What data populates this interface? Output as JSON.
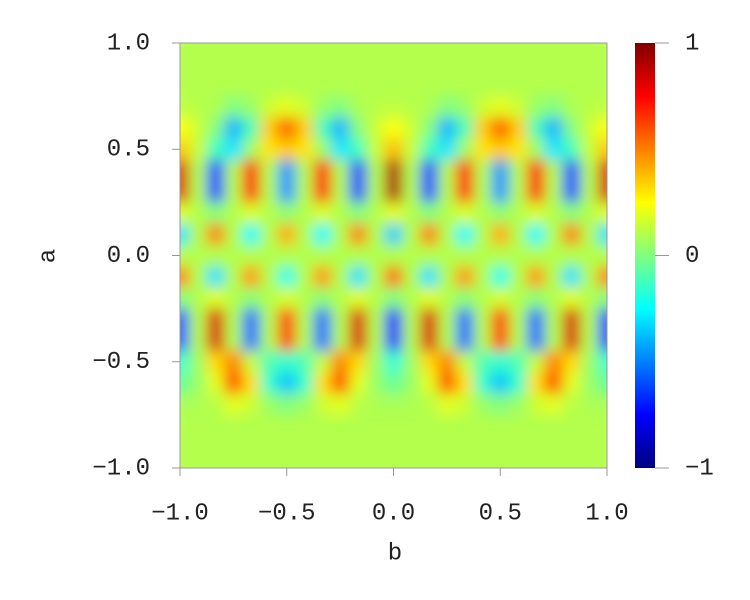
{
  "chart_data": {
    "type": "heatmap",
    "colormap": "jet",
    "xlabel": "b",
    "ylabel": "a",
    "x": [
      -1,
      -0.9167,
      -0.8333,
      -0.75,
      -0.6667,
      -0.5833,
      -0.5,
      -0.4167,
      -0.3333,
      -0.25,
      -0.1667,
      -0.0833,
      0,
      0.0833,
      0.1667,
      0.25,
      0.3333,
      0.4167,
      0.5,
      0.5833,
      0.6667,
      0.75,
      0.8333,
      0.9167,
      1
    ],
    "y": [
      1,
      0.9,
      0.8,
      0.7,
      0.6,
      0.5,
      0.4,
      0.3,
      0.2,
      0.1,
      0,
      -0.1,
      -0.2,
      -0.3,
      -0.4,
      -0.5,
      -0.6,
      -0.7,
      -0.8,
      -0.9,
      -1
    ],
    "z": [
      [
        0.1,
        0.1,
        0.1,
        0.1,
        0.1,
        0.1,
        0.1,
        0.1,
        0.1,
        0.1,
        0.1,
        0.1,
        0.1,
        0.1,
        0.1,
        0.1,
        0.1,
        0.1,
        0.1,
        0.1,
        0.1,
        0.1,
        0.1,
        0.1,
        0.1
      ],
      [
        0.1,
        0.1,
        0.1,
        0.1,
        0.1,
        0.1,
        0.1,
        0.1,
        0.1,
        0.1,
        0.1,
        0.1,
        0.1,
        0.1,
        0.1,
        0.1,
        0.1,
        0.1,
        0.1,
        0.1,
        0.1,
        0.1,
        0.1,
        0.1,
        0.1
      ],
      [
        0.1,
        0.1,
        0.1,
        0.1,
        0.1,
        0.1,
        0.1,
        0.1,
        0.1,
        0.1,
        0.1,
        0.1,
        0.1,
        0.1,
        0.1,
        0.1,
        0.1,
        0.1,
        0.1,
        0.1,
        0.1,
        0.1,
        0.1,
        0.1,
        0.1
      ],
      [
        0.12,
        0.11,
        0.09,
        0,
        0.05,
        0.15,
        0.2,
        0.15,
        0.05,
        0,
        0.09,
        0.11,
        0.12,
        0.11,
        0.09,
        0,
        0.05,
        0.15,
        0.2,
        0.15,
        0.05,
        0,
        0.09,
        0.11,
        0.12
      ],
      [
        0.25,
        0.15,
        0.01,
        -0.4,
        -0.11,
        0.35,
        0.57,
        0.35,
        -0.11,
        -0.4,
        0.01,
        0.15,
        0.25,
        0.15,
        0.01,
        -0.4,
        -0.11,
        0.35,
        0.57,
        0.35,
        -0.11,
        -0.4,
        0.01,
        0.15,
        0.25
      ],
      [
        0.36,
        0.14,
        -0.12,
        -0.3,
        0.06,
        0.3,
        0.36,
        0.3,
        0.06,
        -0.3,
        -0.12,
        0.14,
        0.38,
        0.14,
        -0.12,
        -0.3,
        0.06,
        0.3,
        0.36,
        0.3,
        0.06,
        -0.3,
        -0.12,
        0.14,
        0.36
      ],
      [
        0.82,
        0.1,
        -0.62,
        0.1,
        0.74,
        0.1,
        -0.46,
        0.1,
        0.74,
        0.1,
        -0.62,
        0.1,
        0.9,
        0.1,
        -0.62,
        0.1,
        0.74,
        0.1,
        -0.46,
        0.1,
        0.74,
        0.1,
        -0.62,
        0.1,
        0.82
      ],
      [
        0.82,
        0.1,
        -0.62,
        0.1,
        0.74,
        0.1,
        -0.46,
        0.1,
        0.74,
        0.1,
        -0.62,
        0.1,
        0.9,
        0.1,
        -0.62,
        0.1,
        0.74,
        0.1,
        -0.46,
        0.1,
        0.74,
        0.1,
        -0.62,
        0.1,
        0.82
      ],
      [
        0.19,
        0.1,
        0.01,
        0.1,
        0.18,
        0.1,
        0.03,
        0.1,
        0.18,
        0.1,
        0.01,
        0.1,
        0.2,
        0.1,
        0.01,
        0.1,
        0.18,
        0.1,
        0.03,
        0.1,
        0.18,
        0.1,
        0.01,
        0.1,
        0.19
      ],
      [
        -0.31,
        0.1,
        0.51,
        0.1,
        -0.26,
        0.1,
        0.42,
        0.1,
        -0.26,
        0.1,
        0.51,
        0.1,
        -0.35,
        0.1,
        0.51,
        0.1,
        -0.26,
        0.1,
        0.42,
        0.1,
        -0.26,
        0.1,
        0.51,
        0.1,
        -0.31
      ],
      [
        0.1,
        0.1,
        0.1,
        0.1,
        0.1,
        0.1,
        0.1,
        0.1,
        0.1,
        0.1,
        0.1,
        0.1,
        0.1,
        0.1,
        0.1,
        0.1,
        0.1,
        0.1,
        0.1,
        0.1,
        0.1,
        0.1,
        0.1,
        0.1,
        0.1
      ],
      [
        0.51,
        0.1,
        -0.31,
        0.1,
        0.46,
        0.1,
        -0.22,
        0.1,
        0.46,
        0.1,
        -0.31,
        0.1,
        0.55,
        0.1,
        -0.31,
        0.1,
        0.46,
        0.1,
        -0.22,
        0.1,
        0.46,
        0.1,
        -0.31,
        0.1,
        0.51
      ],
      [
        0.01,
        0.1,
        0.19,
        0.1,
        0.02,
        0.1,
        0.17,
        0.1,
        0.02,
        0.1,
        0.19,
        0.1,
        0,
        0.1,
        0.19,
        0.1,
        0.02,
        0.1,
        0.17,
        0.1,
        0.02,
        0.1,
        0.19,
        0.1,
        0.01
      ],
      [
        -0.62,
        0.1,
        0.82,
        0.1,
        -0.54,
        0.1,
        0.66,
        0.1,
        -0.54,
        0.1,
        0.82,
        0.1,
        -0.7,
        0.1,
        0.82,
        0.1,
        -0.54,
        0.1,
        0.66,
        0.1,
        -0.54,
        0.1,
        0.82,
        0.1,
        -0.62
      ],
      [
        -0.62,
        0.1,
        0.82,
        0.1,
        -0.54,
        0.1,
        0.66,
        0.1,
        -0.54,
        0.1,
        0.82,
        0.1,
        -0.7,
        0.1,
        0.82,
        0.1,
        -0.54,
        0.1,
        0.66,
        0.1,
        -0.54,
        0.1,
        0.82,
        0.1,
        -0.62
      ],
      [
        -0.16,
        0.06,
        0.32,
        0.5,
        0.14,
        -0.1,
        -0.16,
        -0.1,
        0.14,
        0.5,
        0.32,
        0.06,
        -0.18,
        0.06,
        0.32,
        0.5,
        0.14,
        -0.1,
        -0.16,
        -0.1,
        0.14,
        0.5,
        0.32,
        0.06,
        -0.16
      ],
      [
        -0.05,
        0.05,
        0.2,
        0.6,
        0.31,
        -0.15,
        -0.37,
        -0.15,
        0.31,
        0.6,
        0.2,
        0.05,
        -0.05,
        0.05,
        0.2,
        0.6,
        0.31,
        -0.15,
        -0.37,
        -0.15,
        0.31,
        0.6,
        0.2,
        0.05,
        -0.05
      ],
      [
        0.08,
        0.09,
        0.11,
        0.2,
        0.15,
        0.05,
        0,
        0.05,
        0.15,
        0.2,
        0.11,
        0.09,
        0.08,
        0.09,
        0.11,
        0.2,
        0.15,
        0.05,
        0,
        0.05,
        0.15,
        0.2,
        0.11,
        0.09,
        0.08
      ],
      [
        0.1,
        0.1,
        0.1,
        0.1,
        0.1,
        0.1,
        0.1,
        0.1,
        0.1,
        0.1,
        0.1,
        0.1,
        0.1,
        0.1,
        0.1,
        0.1,
        0.1,
        0.1,
        0.1,
        0.1,
        0.1,
        0.1,
        0.1,
        0.1,
        0.1
      ],
      [
        0.1,
        0.1,
        0.1,
        0.1,
        0.1,
        0.1,
        0.1,
        0.1,
        0.1,
        0.1,
        0.1,
        0.1,
        0.1,
        0.1,
        0.1,
        0.1,
        0.1,
        0.1,
        0.1,
        0.1,
        0.1,
        0.1,
        0.1,
        0.1,
        0.1
      ],
      [
        0.1,
        0.1,
        0.1,
        0.1,
        0.1,
        0.1,
        0.1,
        0.1,
        0.1,
        0.1,
        0.1,
        0.1,
        0.1,
        0.1,
        0.1,
        0.1,
        0.1,
        0.1,
        0.1,
        0.1,
        0.1,
        0.1,
        0.1,
        0.1,
        0.1
      ]
    ],
    "xlim": [
      -1,
      1
    ],
    "ylim": [
      -1,
      1
    ],
    "xticks": [
      {
        "value": -1,
        "label": "−1.0"
      },
      {
        "value": -0.5,
        "label": "−0.5"
      },
      {
        "value": 0,
        "label": "0.0"
      },
      0.5,
      {
        "value": 1,
        "label": "1.0"
      }
    ],
    "yticks": [
      {
        "value": -1,
        "label": "−1.0"
      },
      {
        "value": -0.5,
        "label": "−0.5"
      },
      {
        "value": 0,
        "label": "0.0"
      },
      0.5,
      {
        "value": 1,
        "label": "1.0"
      }
    ],
    "zlim": [
      -1,
      1
    ],
    "zticks": [
      {
        "value": -1,
        "label": "−1"
      },
      0,
      1
    ]
  }
}
